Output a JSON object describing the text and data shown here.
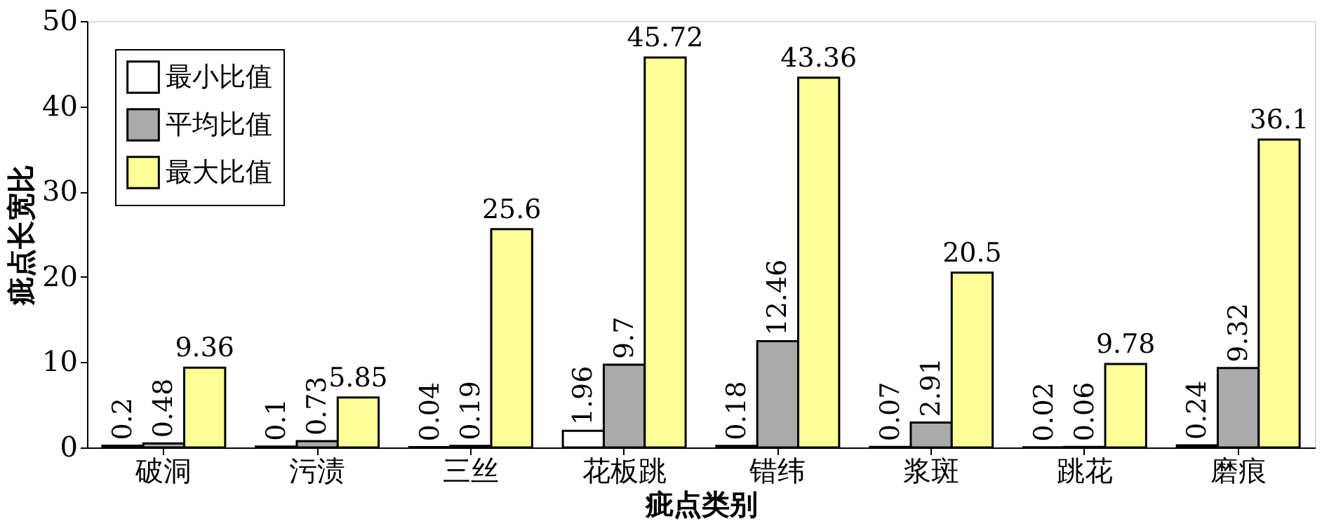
{
  "chart_data": {
    "type": "bar",
    "xlabel": "疵点类别",
    "ylabel": "疵点长宽比",
    "categories": [
      "破洞",
      "污渍",
      "三丝",
      "花板跳",
      "错纬",
      "浆斑",
      "跳花",
      "磨痕"
    ],
    "series": [
      {
        "name": "最小比值",
        "color": "#ffffff",
        "values": [
          0.2,
          0.1,
          0.04,
          1.96,
          0.18,
          0.07,
          0.02,
          0.24
        ]
      },
      {
        "name": "平均比值",
        "color": "#aaaaaa",
        "values": [
          0.48,
          0.73,
          0.19,
          9.7,
          12.46,
          2.91,
          0.06,
          9.32
        ]
      },
      {
        "name": "最大比值",
        "color": "#ffff99",
        "values": [
          9.36,
          5.85,
          25.6,
          45.72,
          43.36,
          20.5,
          9.78,
          36.1
        ]
      }
    ],
    "ylim": [
      0,
      50
    ],
    "yticks": [
      0,
      10,
      20,
      30,
      40,
      50
    ],
    "grid": false,
    "legend": "top left",
    "data_labels": true
  }
}
